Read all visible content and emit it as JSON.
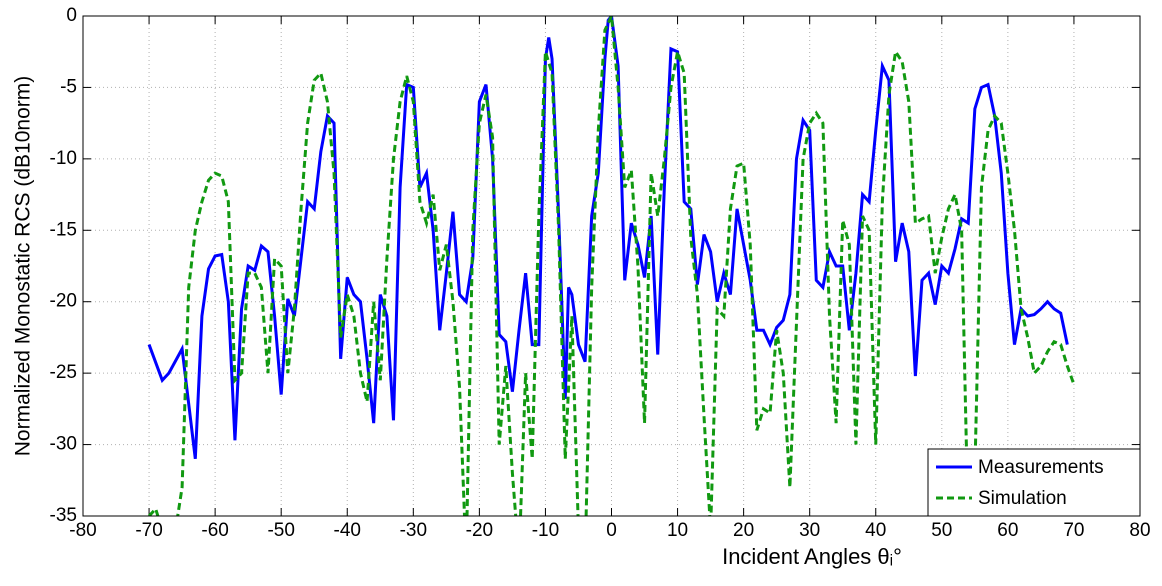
{
  "chart_data": {
    "type": "line",
    "xlabel": "Incident Angles θᵢ°",
    "ylabel": "Normalized Monostatic RCS (dB10norm)",
    "xlim": [
      -80,
      80
    ],
    "ylim": [
      -35,
      0
    ],
    "xticks": [
      -80,
      -70,
      -60,
      -50,
      -40,
      -30,
      -20,
      -10,
      0,
      10,
      20,
      30,
      40,
      50,
      60,
      70,
      80
    ],
    "yticks": [
      -35,
      -30,
      -25,
      -20,
      -15,
      -10,
      -5,
      0
    ],
    "grid": true,
    "legend": "lower right",
    "series": [
      {
        "name": "Measurements",
        "color": "#0000ff",
        "dash": false,
        "x": [
          -70,
          -68,
          -67,
          -65,
          -63,
          -62,
          -61,
          -60,
          -59,
          -58,
          -57,
          -56,
          -55,
          -54,
          -53,
          -52,
          -51,
          -50,
          -49,
          -48,
          -47,
          -46,
          -45,
          -44,
          -43,
          -42,
          -41,
          -40,
          -39,
          -38,
          -37,
          -36,
          -35,
          -34,
          -33,
          -32,
          -31,
          -30,
          -29,
          -28,
          -27,
          -26,
          -25,
          -24,
          -23,
          -22,
          -21,
          -20,
          -19,
          -18,
          -17,
          -16,
          -15,
          -14,
          -13,
          -12,
          -11,
          -10,
          -9.5,
          -9,
          -8,
          -7,
          -6.5,
          -6,
          -5,
          -4,
          -3,
          -2,
          -1,
          -0.5,
          0,
          1,
          2,
          3,
          4,
          5,
          6,
          7,
          8,
          9,
          10,
          11,
          12,
          13,
          14,
          15,
          16,
          17,
          18,
          19,
          20,
          21,
          22,
          23,
          24,
          25,
          26,
          27,
          28,
          29,
          30,
          31,
          32,
          33,
          34,
          35,
          36,
          37,
          38,
          39,
          40,
          41,
          42,
          43,
          44,
          45,
          46,
          47,
          48,
          49,
          50,
          51,
          52,
          53,
          54,
          55,
          56,
          57,
          58,
          59,
          60,
          61,
          62,
          63,
          64,
          65,
          66,
          67,
          68,
          69
        ],
        "values": [
          -23,
          -25.5,
          -25,
          -23.3,
          -31,
          -21,
          -17.7,
          -16.8,
          -16.7,
          -20,
          -29.7,
          -20.5,
          -17.5,
          -17.8,
          -16.1,
          -16.5,
          -21,
          -26.5,
          -19.8,
          -21,
          -17,
          -13,
          -13.5,
          -9.5,
          -7,
          -7.5,
          -24,
          -18.3,
          -19.5,
          -20,
          -24,
          -28.5,
          -19.5,
          -21,
          -28.3,
          -12,
          -4.8,
          -5,
          -12,
          -11,
          -15,
          -22,
          -18,
          -13.7,
          -19.5,
          -20,
          -17,
          -6,
          -4.8,
          -10,
          -22.3,
          -22.8,
          -26.3,
          -22,
          -18,
          -23,
          -23,
          -3,
          -1.5,
          -3,
          -14,
          -26.8,
          -19,
          -19.5,
          -23,
          -24.2,
          -14,
          -11,
          -3,
          -0.3,
          0,
          -3.5,
          -18.5,
          -14.5,
          -16,
          -18.3,
          -14,
          -23.7,
          -12,
          -2.3,
          -2.5,
          -13,
          -13.5,
          -18.8,
          -15.3,
          -16.5,
          -20,
          -18,
          -19.5,
          -13.5,
          -16,
          -18.5,
          -22,
          -22,
          -23,
          -21.8,
          -21.3,
          -19.5,
          -10,
          -7.3,
          -8,
          -18.5,
          -19,
          -16.5,
          -17.5,
          -17.5,
          -22,
          -18,
          -12.5,
          -13,
          -8,
          -3.5,
          -4.5,
          -17.2,
          -14.5,
          -16.5,
          -25.2,
          -18.5,
          -18,
          -20.2,
          -17.5,
          -18,
          -16.3,
          -14.2,
          -14.5,
          -6.5,
          -5,
          -4.8,
          -7,
          -11,
          -18,
          -23,
          -20.5,
          -21,
          -20.9,
          -20.5,
          -20,
          -20.5,
          -20.8,
          -23
        ]
      },
      {
        "name": "Simulation",
        "color": "#119911",
        "dash": true,
        "x": [
          -70,
          -69,
          -68,
          -66,
          -65,
          -64,
          -63,
          -62,
          -61,
          -60,
          -59,
          -58,
          -57,
          -56,
          -55,
          -54,
          -53,
          -52,
          -51,
          -50,
          -49,
          -48,
          -47,
          -46,
          -45,
          -44,
          -43,
          -42,
          -41,
          -40,
          -39,
          -38,
          -37,
          -36,
          -35,
          -34,
          -33,
          -32,
          -31,
          -30,
          -29,
          -28,
          -27,
          -26,
          -25,
          -24,
          -23,
          -22,
          -21,
          -20,
          -19,
          -18,
          -17,
          -16,
          -15,
          -14,
          -13,
          -12,
          -11,
          -10,
          -9,
          -8,
          -7,
          -6,
          -5,
          -4,
          -3,
          -2,
          -1,
          0,
          1,
          2,
          3,
          4,
          5,
          6,
          7,
          8,
          9,
          10,
          11,
          12,
          13,
          14,
          15,
          16,
          17,
          18,
          19,
          20,
          21,
          22,
          23,
          24,
          25,
          26,
          27,
          28,
          29,
          30,
          31,
          32,
          33,
          34,
          35,
          36,
          37,
          38,
          39,
          40,
          41,
          42,
          43,
          44,
          45,
          46,
          47,
          48,
          49,
          50,
          51,
          52,
          53,
          54,
          55,
          56,
          57,
          58,
          59,
          60,
          61,
          62,
          63,
          64,
          65,
          66,
          67,
          68,
          69,
          70
        ],
        "values": [
          -35,
          -34.5,
          -36,
          -36,
          -33,
          -19,
          -15,
          -13,
          -11.5,
          -11,
          -11.2,
          -13,
          -25.5,
          -25,
          -18,
          -18,
          -19,
          -25,
          -17,
          -17.5,
          -25,
          -20.5,
          -13.5,
          -7.5,
          -4.5,
          -4,
          -6,
          -11,
          -22.5,
          -19.5,
          -21,
          -25,
          -27,
          -20,
          -25.5,
          -17,
          -10,
          -6,
          -4.2,
          -6,
          -13,
          -14.5,
          -12.5,
          -17.8,
          -16,
          -20,
          -26,
          -38,
          -15,
          -7.5,
          -5.5,
          -8.5,
          -30,
          -24.5,
          -32,
          -38,
          -25,
          -31,
          -14,
          -2.5,
          -4,
          -15,
          -31,
          -21,
          -36,
          -38,
          -19,
          -8,
          -1,
          0,
          -5,
          -12,
          -10.8,
          -17.5,
          -28.5,
          -11,
          -14,
          -10,
          -5,
          -2.5,
          -4,
          -15.5,
          -19.5,
          -28,
          -36,
          -20.5,
          -21,
          -13.5,
          -10.5,
          -10.3,
          -16,
          -29,
          -27.5,
          -27.8,
          -22,
          -25,
          -33,
          -21.5,
          -10,
          -7.5,
          -6.8,
          -7.5,
          -21,
          -28.5,
          -14.3,
          -16,
          -30,
          -14,
          -15,
          -30,
          -13,
          -5.5,
          -2.5,
          -3.2,
          -6,
          -14.5,
          -14.2,
          -14,
          -18,
          -15.5,
          -13.5,
          -12.5,
          -15,
          -36,
          -32,
          -12,
          -8,
          -7,
          -7.5,
          -11,
          -15,
          -20.5,
          -22.5,
          -25,
          -24.5,
          -23.5,
          -22.8,
          -23,
          -24.5,
          -25.8
        ]
      }
    ]
  }
}
